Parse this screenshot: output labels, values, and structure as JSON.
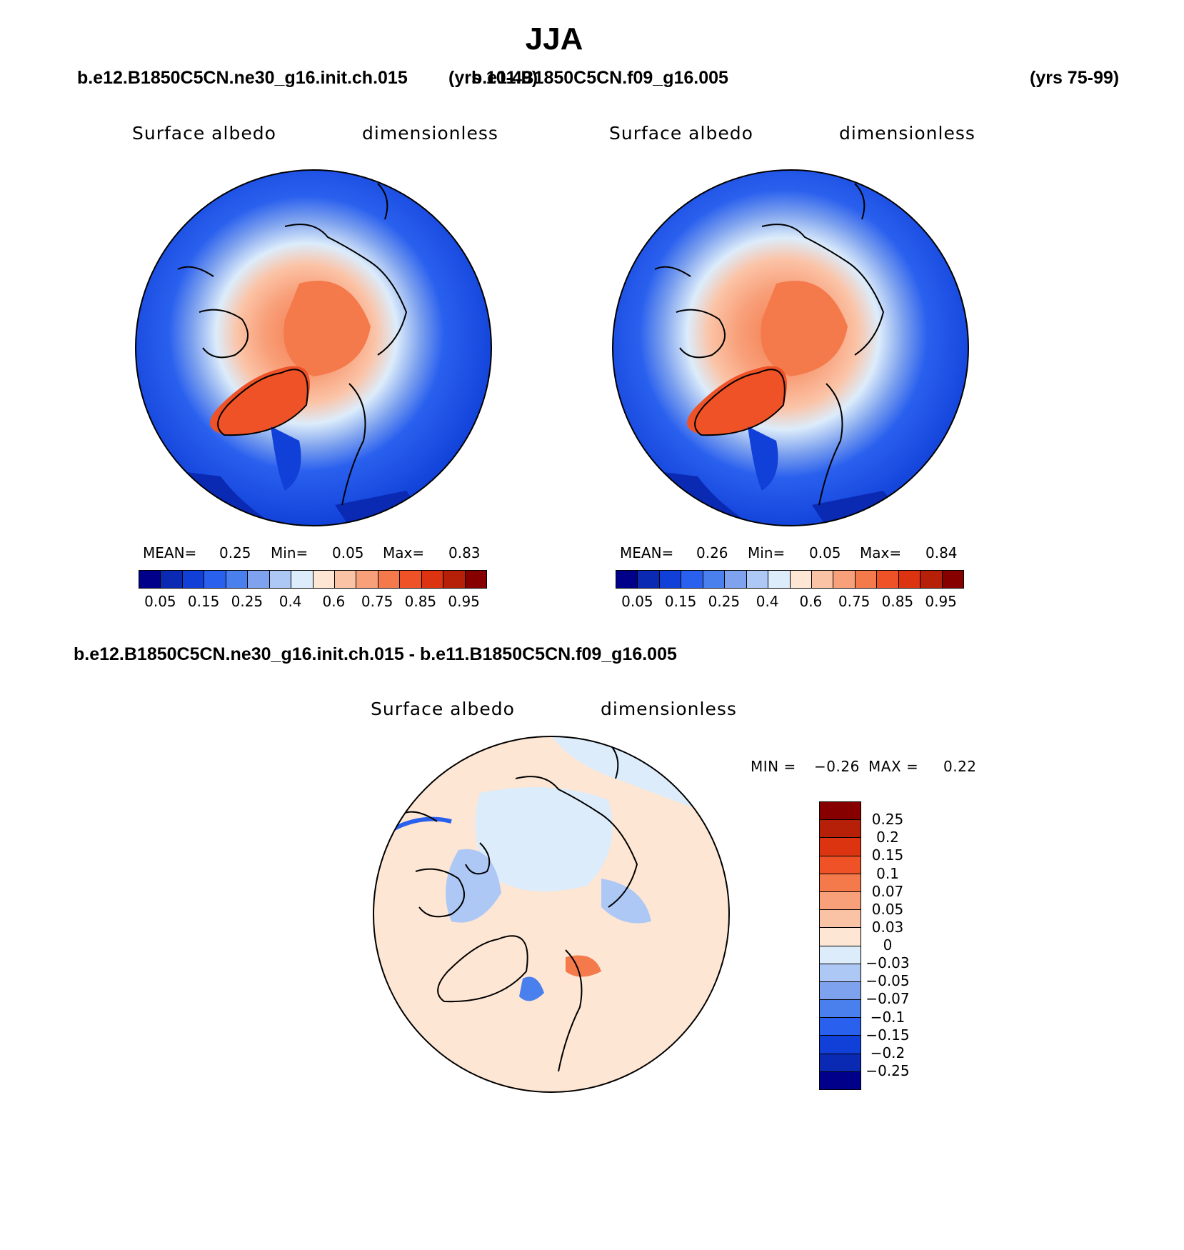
{
  "title": "JJA",
  "case_left": "b.e12.B1850C5CN.ne30_g16.init.ch.015",
  "years_left": "(yrs 10-49)",
  "case_right": "b.e11.B1850C5CN.f09_g16.005",
  "years_right": "(yrs 75-99)",
  "diff_title": "b.e12.B1850C5CN.ne30_g16.init.ch.015 - b.e11.B1850C5CN.f09_g16.005",
  "panels": [
    {
      "variable": "Surface albedo",
      "units": "dimensionless",
      "mean_label": "MEAN=",
      "mean": "0.25",
      "min_label": "Min=",
      "min": "0.05",
      "max_label": "Max=",
      "max": "0.83"
    },
    {
      "variable": "Surface albedo",
      "units": "dimensionless",
      "mean_label": "MEAN=",
      "mean": "0.26",
      "min_label": "Min=",
      "min": "0.05",
      "max_label": "Max=",
      "max": "0.84"
    }
  ],
  "diff_panel": {
    "variable": "Surface albedo",
    "units": "dimensionless",
    "min_label": "MIN =",
    "min": "−0.26",
    "max_label": "MAX =",
    "max": "0.22"
  },
  "colorbar_abs": {
    "colors": [
      "#00008a",
      "#0a2ab4",
      "#1040d8",
      "#2a60ee",
      "#4a80ee",
      "#7ea2ee",
      "#aec8f6",
      "#dcecfb",
      "#fde6d4",
      "#fbc3a6",
      "#f8a07a",
      "#f47a4c",
      "#ee5226",
      "#dc3410",
      "#b62008",
      "#860000"
    ],
    "ticks": [
      "0.05",
      "0.15",
      "0.25",
      "0.4",
      "0.6",
      "0.75",
      "0.85",
      "0.95"
    ]
  },
  "colorbar_diff": {
    "colors": [
      "#860000",
      "#b62008",
      "#dc3410",
      "#ee5226",
      "#f47a4c",
      "#f8a07a",
      "#fbc3a6",
      "#fde6d4",
      "#dcecfb",
      "#aec8f6",
      "#7ea2ee",
      "#4a80ee",
      "#2a60ee",
      "#1040d8",
      "#0a2ab4",
      "#00008a"
    ],
    "ticks": [
      "0.25",
      "0.2",
      "0.15",
      "0.1",
      "0.07",
      "0.05",
      "0.03",
      "0",
      "−0.03",
      "−0.05",
      "−0.07",
      "−0.1",
      "−0.15",
      "−0.2",
      "−0.25"
    ]
  }
}
